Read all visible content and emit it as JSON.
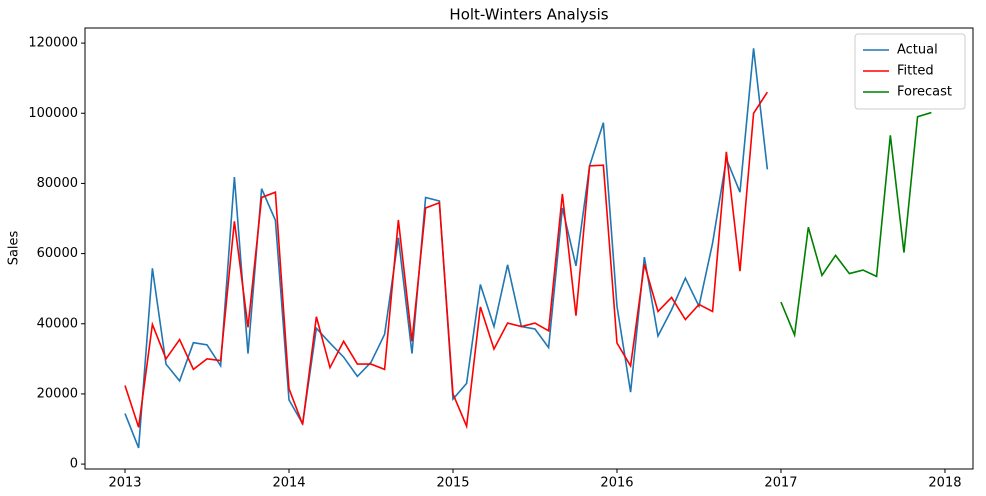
{
  "chart_data": {
    "type": "line",
    "title": "Holt-Winters Analysis",
    "y_label": "Sales",
    "xlim": [
      2012.756,
      2018.171
    ],
    "xticks": [
      2013,
      2014,
      2015,
      2016,
      2017,
      2018
    ],
    "ylim": [
      -1400,
      124300
    ],
    "yticks": [
      0,
      20000,
      40000,
      60000,
      80000,
      100000,
      120000
    ],
    "legend": "upper right",
    "series": [
      {
        "name": "Actual",
        "color": "#1f77b4",
        "x": [
          2013.0,
          2013.083,
          2013.167,
          2013.25,
          2013.333,
          2013.417,
          2013.5,
          2013.583,
          2013.667,
          2013.75,
          2013.833,
          2013.917,
          2014.0,
          2014.083,
          2014.167,
          2014.25,
          2014.333,
          2014.417,
          2014.5,
          2014.583,
          2014.667,
          2014.75,
          2014.833,
          2014.917,
          2015.0,
          2015.083,
          2015.167,
          2015.25,
          2015.333,
          2015.417,
          2015.5,
          2015.583,
          2015.667,
          2015.75,
          2015.833,
          2015.917,
          2016.0,
          2016.083,
          2016.167,
          2016.25,
          2016.333,
          2016.417,
          2016.5,
          2016.583,
          2016.667,
          2016.75,
          2016.833,
          2016.917
        ],
        "values": [
          14400,
          4600,
          55800,
          28500,
          23700,
          34600,
          34000,
          28000,
          81800,
          31500,
          78500,
          69500,
          18300,
          11500,
          38700,
          34500,
          30500,
          25000,
          29000,
          37000,
          64500,
          31500,
          76000,
          75000,
          18500,
          23000,
          51200,
          39200,
          56800,
          39200,
          38500,
          33200,
          73000,
          56500,
          85000,
          97300,
          45000,
          20500,
          59000,
          36500,
          44000,
          53000,
          45000,
          63000,
          87000,
          77500,
          118500,
          84000
        ]
      },
      {
        "name": "Fitted",
        "color": "#ff0000",
        "x": [
          2013.0,
          2013.083,
          2013.167,
          2013.25,
          2013.333,
          2013.417,
          2013.5,
          2013.583,
          2013.667,
          2013.75,
          2013.833,
          2013.917,
          2014.0,
          2014.083,
          2014.167,
          2014.25,
          2014.333,
          2014.417,
          2014.5,
          2014.583,
          2014.667,
          2014.75,
          2014.833,
          2014.917,
          2015.0,
          2015.083,
          2015.167,
          2015.25,
          2015.333,
          2015.417,
          2015.5,
          2015.583,
          2015.667,
          2015.75,
          2015.833,
          2015.917,
          2016.0,
          2016.083,
          2016.167,
          2016.25,
          2016.333,
          2016.417,
          2016.5,
          2016.583,
          2016.667,
          2016.75,
          2016.833,
          2016.917
        ],
        "values": [
          22400,
          10500,
          39800,
          30000,
          35500,
          27000,
          30000,
          29500,
          69200,
          39000,
          76000,
          77500,
          21500,
          11300,
          42000,
          27500,
          35000,
          28500,
          28500,
          27000,
          69600,
          35000,
          73000,
          74500,
          20000,
          10800,
          44800,
          32800,
          40200,
          39200,
          40200,
          38000,
          77000,
          42300,
          85000,
          85200,
          34500,
          28000,
          57000,
          43500,
          47500,
          41200,
          45500,
          43500,
          89000,
          55000,
          100000,
          106000
        ]
      },
      {
        "name": "Forecast",
        "color": "#008000",
        "x": [
          2017.0,
          2017.083,
          2017.167,
          2017.25,
          2017.333,
          2017.417,
          2017.5,
          2017.583,
          2017.667,
          2017.75,
          2017.833,
          2017.917
        ],
        "values": [
          46200,
          36800,
          67500,
          53800,
          59500,
          54300,
          55300,
          53500,
          93700,
          60300,
          99000,
          100200
        ]
      }
    ]
  }
}
